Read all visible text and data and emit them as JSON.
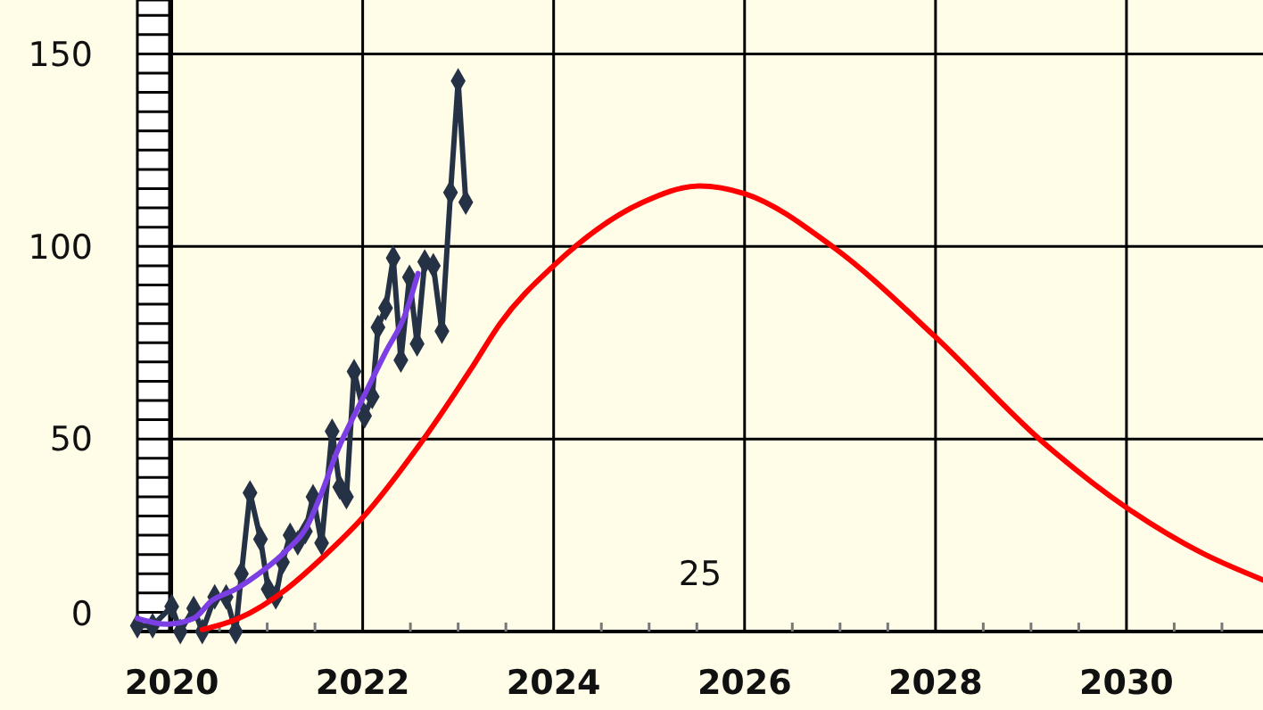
{
  "chart_data": {
    "type": "line",
    "xlim": [
      2019.64,
      2031.43
    ],
    "ylim": [
      0,
      164
    ],
    "xticks": [
      2020,
      2022,
      2024,
      2026,
      2028,
      2030
    ],
    "yticks": [
      0,
      50,
      100,
      150
    ],
    "grid": true,
    "annotations": [
      "25"
    ],
    "series": [
      {
        "color": "#253246",
        "marker": "diamond",
        "x": [
          2019.64,
          2019.8,
          2020.0,
          2020.09,
          2020.23,
          2020.32,
          2020.45,
          2020.57,
          2020.67,
          2020.73,
          2020.82,
          2020.93,
          2021.01,
          2021.09,
          2021.16,
          2021.24,
          2021.32,
          2021.4,
          2021.48,
          2021.57,
          2021.68,
          2021.76,
          2021.83,
          2021.91,
          2022.02,
          2022.1,
          2022.16,
          2022.24,
          2022.32,
          2022.4,
          2022.49,
          2022.57,
          2022.65,
          2022.74,
          2022.83,
          2022.92,
          2023.0,
          2023.08
        ],
        "values": [
          1.5,
          1.5,
          6.5,
          0,
          6,
          0,
          9,
          9,
          0,
          15,
          36,
          24,
          11,
          9,
          18,
          25,
          23,
          26,
          35,
          23,
          52,
          37.5,
          35,
          67.5,
          56,
          61,
          79,
          84,
          97,
          70.5,
          92,
          74.7,
          96,
          95,
          78,
          114,
          143,
          111.5
        ]
      },
      {
        "color": "#7b3fe4",
        "marker": "none",
        "x": [
          2019.64,
          2019.95,
          2020.23,
          2020.42,
          2020.67,
          2020.95,
          2021.2,
          2021.41,
          2021.57,
          2021.73,
          2022.0,
          2022.25,
          2022.44,
          2022.58
        ],
        "values": [
          3.4,
          1.9,
          3.4,
          8,
          11,
          15.7,
          21,
          27,
          36,
          46.6,
          60.5,
          73,
          82,
          93
        ]
      },
      {
        "color": "#ff0000",
        "marker": "none",
        "x": [
          2020.32,
          2020.7,
          2021.2,
          2021.57,
          2022.0,
          2022.63,
          2023.13,
          2023.44,
          2024.0,
          2024.93,
          2025.53,
          2026.0,
          2026.93,
          2027.99,
          2029.1,
          2030.01,
          2030.79,
          2031.43
        ],
        "values": [
          0.5,
          3.4,
          11,
          19,
          29.6,
          49.7,
          68,
          80,
          95,
          111.4,
          115.7,
          113.7,
          99.8,
          76.7,
          49.7,
          32,
          20.4,
          13.4
        ]
      }
    ]
  }
}
